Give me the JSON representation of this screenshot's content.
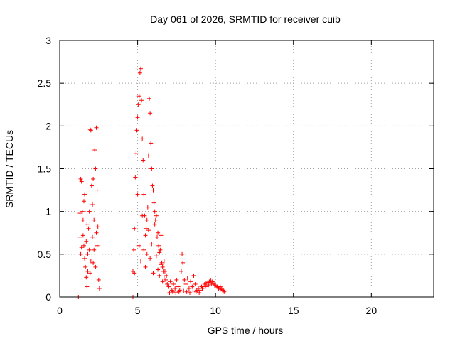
{
  "chart_data": {
    "type": "scatter",
    "title": "Day 061 of 2026, SRMTID for receiver cuib",
    "xlabel": "GPS time / hours",
    "ylabel": "SRMTID / TECUs",
    "xlim": [
      0,
      24
    ],
    "ylim": [
      0,
      3
    ],
    "x_ticks": [
      0,
      5,
      10,
      15,
      20
    ],
    "x_tick_labels": [
      "0",
      "5",
      "10",
      "15",
      "20"
    ],
    "y_ticks": [
      0,
      0.5,
      1,
      1.5,
      2,
      2.5,
      3
    ],
    "y_tick_labels": [
      "0",
      "0.5",
      "1",
      "1.5",
      "2",
      "2.5",
      "3"
    ],
    "grid": true,
    "marker": "+",
    "series": [
      {
        "name": "SRMTID",
        "color": "#ff0000",
        "points": [
          [
            1.2,
            0.0
          ],
          [
            4.7,
            0.0
          ],
          [
            1.3,
            0.98
          ],
          [
            1.35,
            1.38
          ],
          [
            1.4,
            1.35
          ],
          [
            1.45,
            1.0
          ],
          [
            1.5,
            0.72
          ],
          [
            1.55,
            0.6
          ],
          [
            1.6,
            0.45
          ],
          [
            1.65,
            0.35
          ],
          [
            1.7,
            0.23
          ],
          [
            1.75,
            0.12
          ],
          [
            1.8,
            0.5
          ],
          [
            1.85,
            0.8
          ],
          [
            1.9,
            1.0
          ],
          [
            1.95,
            1.96
          ],
          [
            2.0,
            1.95
          ],
          [
            2.05,
            1.3
          ],
          [
            2.1,
            0.7
          ],
          [
            2.15,
            0.4
          ],
          [
            2.2,
            0.55
          ],
          [
            2.25,
            1.72
          ],
          [
            2.3,
            1.5
          ],
          [
            2.35,
            1.98
          ],
          [
            2.4,
            1.25
          ],
          [
            2.45,
            0.82
          ],
          [
            2.5,
            0.2
          ],
          [
            2.55,
            0.1
          ],
          [
            1.3,
            0.7
          ],
          [
            1.4,
            0.58
          ],
          [
            1.5,
            0.9
          ],
          [
            1.6,
            1.2
          ],
          [
            1.7,
            0.65
          ],
          [
            1.8,
            0.3
          ],
          [
            1.9,
            0.55
          ],
          [
            2.0,
            0.42
          ],
          [
            2.1,
            1.08
          ],
          [
            2.2,
            0.9
          ],
          [
            2.3,
            0.35
          ],
          [
            2.4,
            0.6
          ],
          [
            1.35,
            0.5
          ],
          [
            1.55,
            1.12
          ],
          [
            1.75,
            0.85
          ],
          [
            1.95,
            0.28
          ],
          [
            2.15,
            1.38
          ],
          [
            2.35,
            0.75
          ],
          [
            4.7,
            0.3
          ],
          [
            4.75,
            0.55
          ],
          [
            4.8,
            0.8
          ],
          [
            4.85,
            1.4
          ],
          [
            4.9,
            1.68
          ],
          [
            4.95,
            1.95
          ],
          [
            5.0,
            2.1
          ],
          [
            5.05,
            2.25
          ],
          [
            5.1,
            2.35
          ],
          [
            5.15,
            2.62
          ],
          [
            5.2,
            2.67
          ],
          [
            5.25,
            2.3
          ],
          [
            5.3,
            1.85
          ],
          [
            5.35,
            1.6
          ],
          [
            5.4,
            1.2
          ],
          [
            5.45,
            0.95
          ],
          [
            5.5,
            0.72
          ],
          [
            5.55,
            0.8
          ],
          [
            5.6,
            0.9
          ],
          [
            5.65,
            1.05
          ],
          [
            5.7,
            1.65
          ],
          [
            5.75,
            2.32
          ],
          [
            5.8,
            2.15
          ],
          [
            5.85,
            1.8
          ],
          [
            5.9,
            1.5
          ],
          [
            5.95,
            1.3
          ],
          [
            6.0,
            1.25
          ],
          [
            6.05,
            1.1
          ],
          [
            6.1,
            1.0
          ],
          [
            6.15,
            0.9
          ],
          [
            6.2,
            0.95
          ],
          [
            6.25,
            0.7
          ],
          [
            6.3,
            0.75
          ],
          [
            6.35,
            0.6
          ],
          [
            6.4,
            0.52
          ],
          [
            6.45,
            0.55
          ],
          [
            6.5,
            0.72
          ],
          [
            6.55,
            0.4
          ],
          [
            6.6,
            0.35
          ],
          [
            6.65,
            0.3
          ],
          [
            6.7,
            0.42
          ],
          [
            6.75,
            0.3
          ],
          [
            6.8,
            0.2
          ],
          [
            6.85,
            0.25
          ],
          [
            6.9,
            0.15
          ],
          [
            4.8,
            0.28
          ],
          [
            5.0,
            1.2
          ],
          [
            5.1,
            0.6
          ],
          [
            5.2,
            0.42
          ],
          [
            5.3,
            0.95
          ],
          [
            5.4,
            0.55
          ],
          [
            5.5,
            0.35
          ],
          [
            5.6,
            0.5
          ],
          [
            5.7,
            0.78
          ],
          [
            5.8,
            0.45
          ],
          [
            5.9,
            0.62
          ],
          [
            6.0,
            0.28
          ],
          [
            6.1,
            0.85
          ],
          [
            6.2,
            0.48
          ],
          [
            6.3,
            0.32
          ],
          [
            6.4,
            0.25
          ],
          [
            6.5,
            0.38
          ],
          [
            6.6,
            0.18
          ],
          [
            6.7,
            0.22
          ],
          [
            7.0,
            0.12
          ],
          [
            7.1,
            0.18
          ],
          [
            7.2,
            0.08
          ],
          [
            7.3,
            0.15
          ],
          [
            7.4,
            0.1
          ],
          [
            7.5,
            0.2
          ],
          [
            7.6,
            0.12
          ],
          [
            7.7,
            0.08
          ],
          [
            7.8,
            0.3
          ],
          [
            7.85,
            0.5
          ],
          [
            7.9,
            0.4
          ],
          [
            8.0,
            0.2
          ],
          [
            8.1,
            0.15
          ],
          [
            8.2,
            0.22
          ],
          [
            8.3,
            0.1
          ],
          [
            8.4,
            0.18
          ],
          [
            8.5,
            0.12
          ],
          [
            8.6,
            0.25
          ],
          [
            8.7,
            0.15
          ],
          [
            8.8,
            0.08
          ],
          [
            8.9,
            0.1
          ],
          [
            9.0,
            0.08
          ],
          [
            9.1,
            0.12
          ],
          [
            9.2,
            0.13
          ],
          [
            9.3,
            0.15
          ],
          [
            9.4,
            0.16
          ],
          [
            9.5,
            0.17
          ],
          [
            9.6,
            0.18
          ],
          [
            9.7,
            0.19
          ],
          [
            9.8,
            0.18
          ],
          [
            9.9,
            0.16
          ],
          [
            10.0,
            0.14
          ],
          [
            10.1,
            0.12
          ],
          [
            10.2,
            0.1
          ],
          [
            10.3,
            0.12
          ],
          [
            10.4,
            0.09
          ],
          [
            10.5,
            0.08
          ],
          [
            10.6,
            0.07
          ],
          [
            7.05,
            0.05
          ],
          [
            7.25,
            0.06
          ],
          [
            7.45,
            0.05
          ],
          [
            7.65,
            0.06
          ],
          [
            7.95,
            0.07
          ],
          [
            8.15,
            0.06
          ],
          [
            8.35,
            0.05
          ],
          [
            8.55,
            0.07
          ],
          [
            8.75,
            0.06
          ],
          [
            8.95,
            0.05
          ],
          [
            9.15,
            0.1
          ],
          [
            9.35,
            0.12
          ],
          [
            9.55,
            0.14
          ],
          [
            9.75,
            0.15
          ],
          [
            9.95,
            0.13
          ],
          [
            10.15,
            0.11
          ],
          [
            10.35,
            0.09
          ],
          [
            10.55,
            0.06
          ]
        ]
      }
    ]
  }
}
